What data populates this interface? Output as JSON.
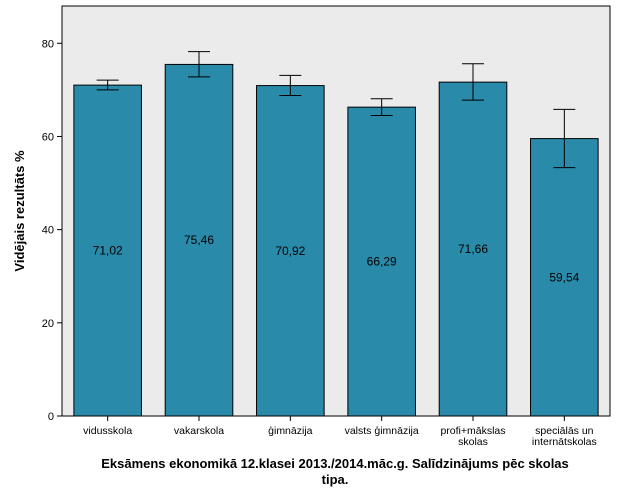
{
  "chart_data": {
    "type": "bar",
    "title_lines": [
      "Eksāmens ekonomikā 12.klasei 2013./2014.māc.g. Salīdzinājums pēc skolas",
      "tipa."
    ],
    "ylabel": "Vidējais rezultāts %",
    "xlabel": "",
    "ylim": [
      0,
      88
    ],
    "yticks": [
      0,
      20,
      40,
      60,
      80
    ],
    "grid": false,
    "categories": [
      [
        "vidusskola"
      ],
      [
        "vakarskola"
      ],
      [
        "ģimnāzija"
      ],
      [
        "valsts ģimnāzija"
      ],
      [
        "profi+mākslas",
        "skolas"
      ],
      [
        "speciālās un",
        "internātskolas"
      ]
    ],
    "values": [
      71.02,
      75.46,
      70.92,
      66.29,
      71.66,
      59.54
    ],
    "value_labels": [
      "71,02",
      "75,46",
      "70,92",
      "66,29",
      "71,66",
      "59,54"
    ],
    "error_bars": [
      [
        70.0,
        72.1
      ],
      [
        72.8,
        78.2
      ],
      [
        68.8,
        73.1
      ],
      [
        64.5,
        68.1
      ],
      [
        67.8,
        75.6
      ],
      [
        53.3,
        65.8
      ]
    ],
    "bar_color": "#2a8aa9",
    "plot_background": "#ebebeb"
  }
}
